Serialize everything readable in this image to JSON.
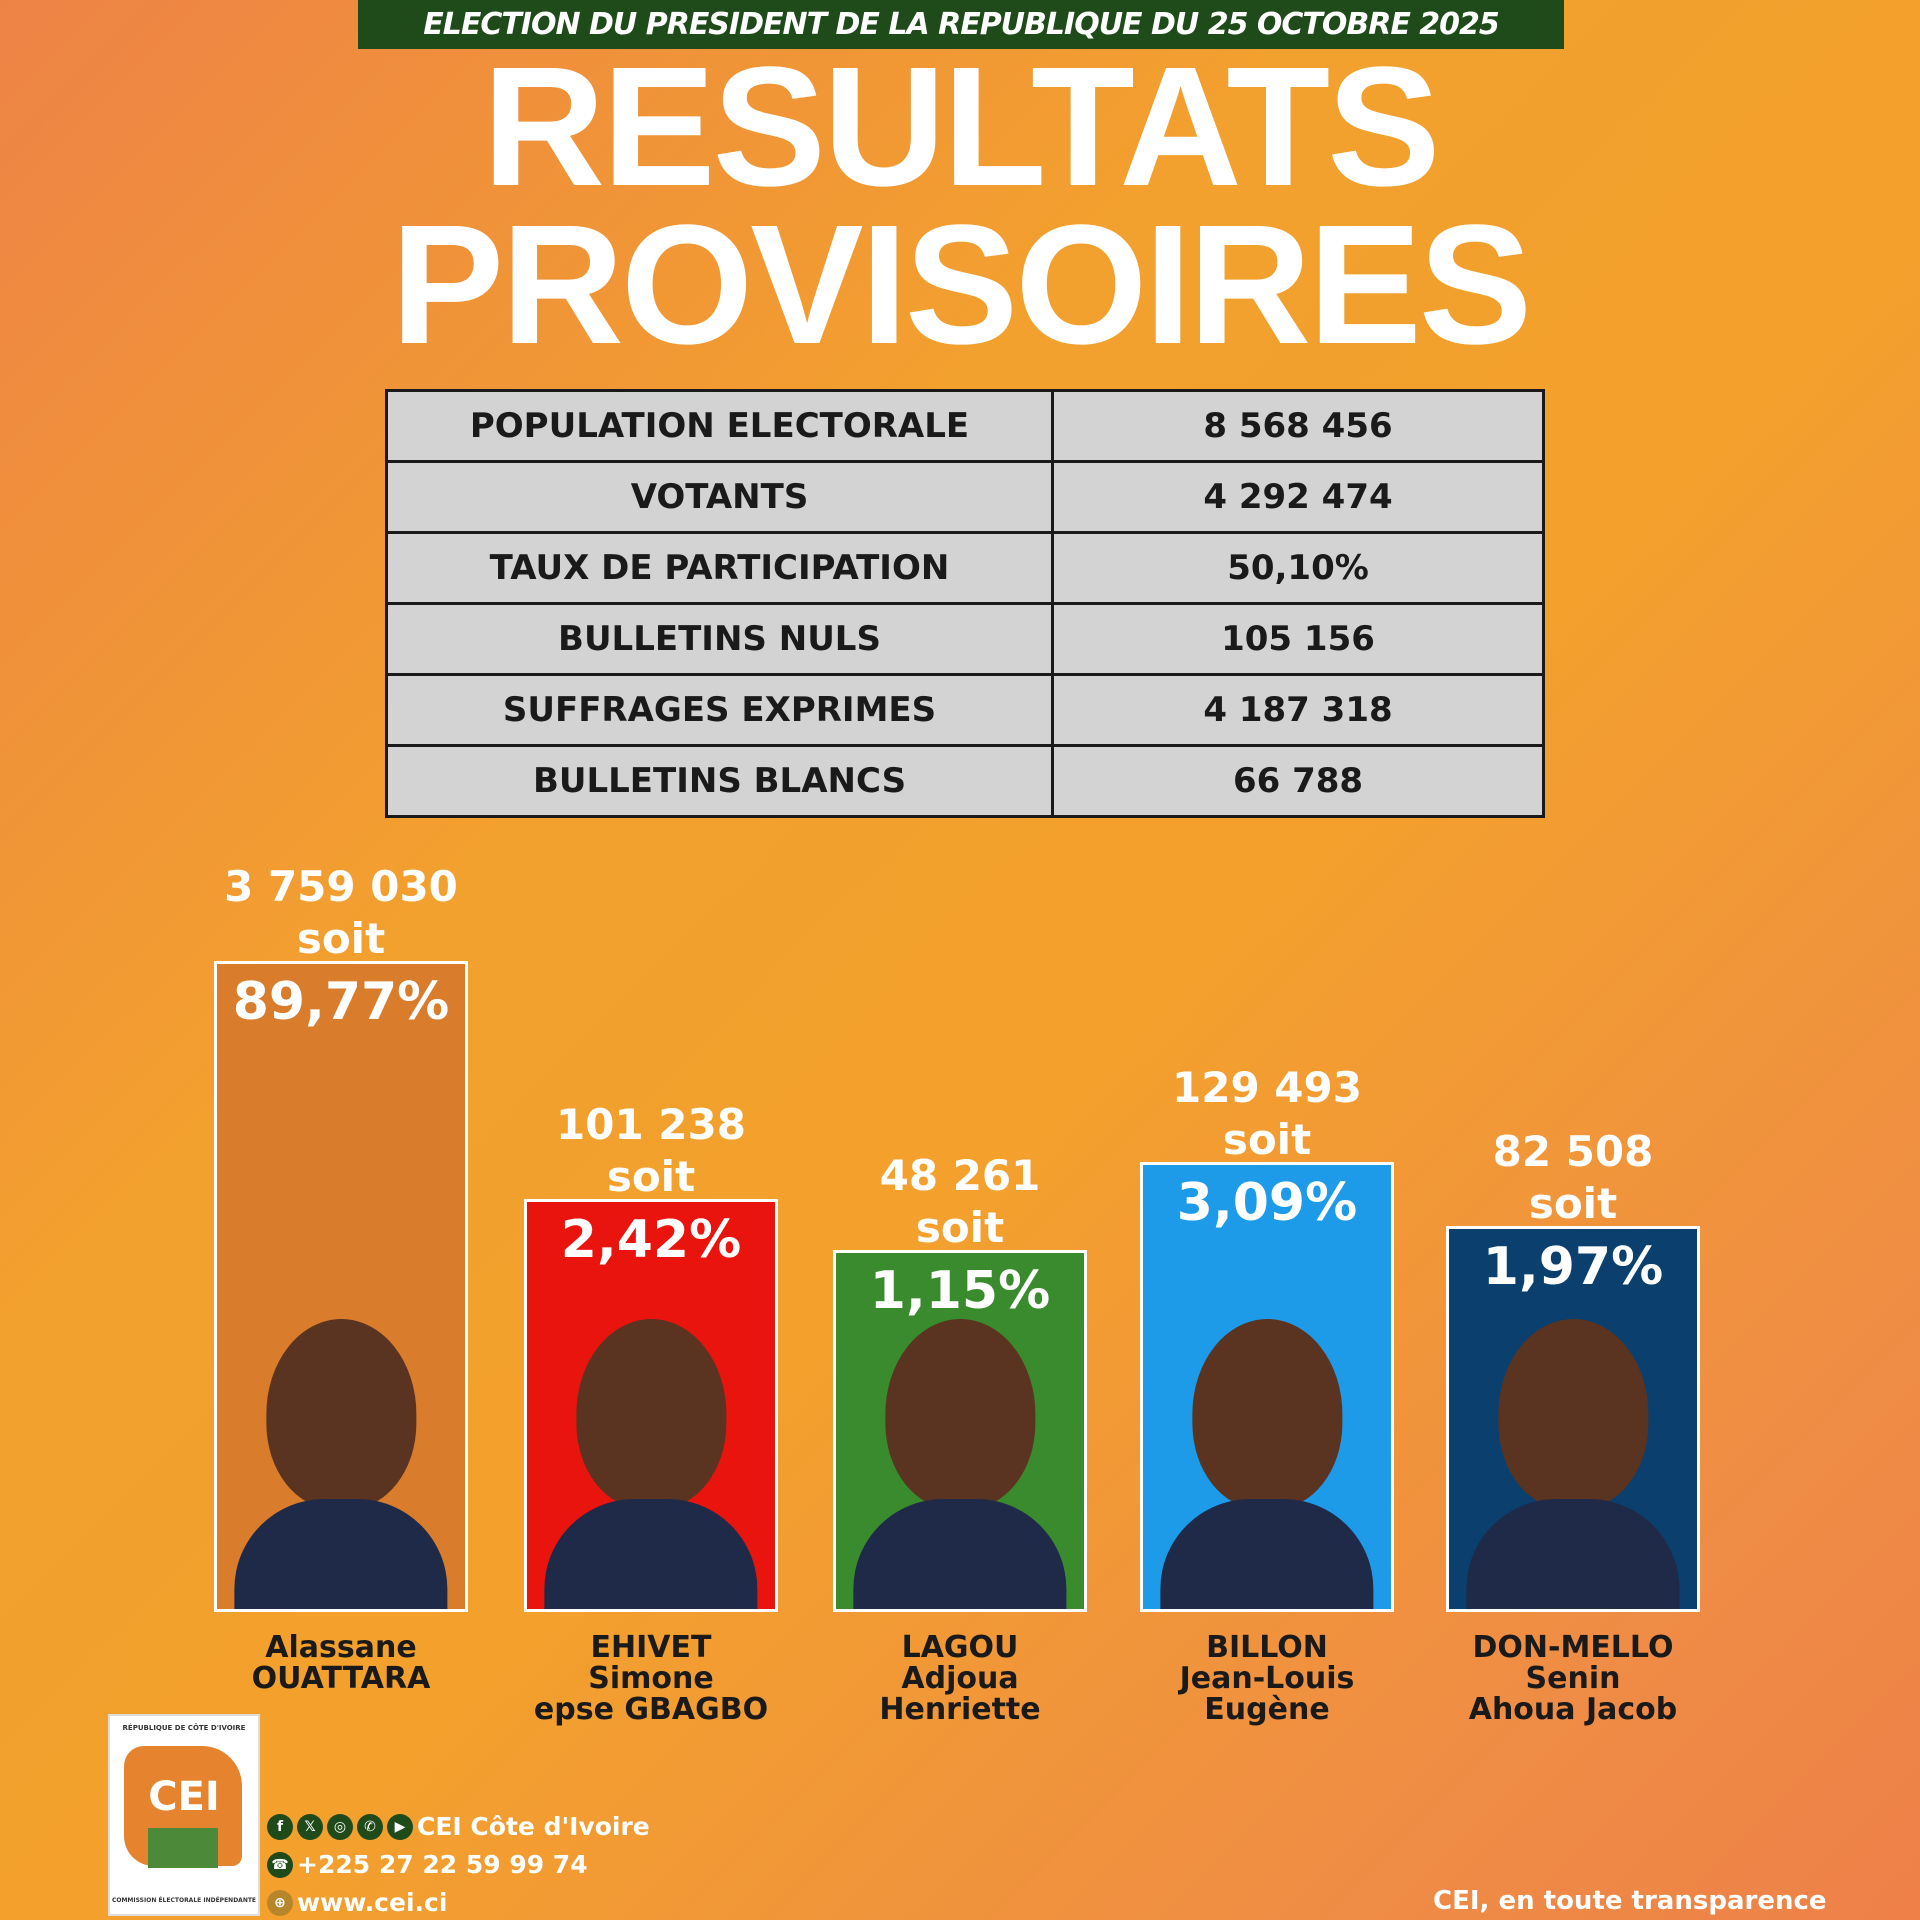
{
  "header": {
    "banner": "ELECTION DU PRESIDENT DE LA REPUBLIQUE DU 25 OCTOBRE 2025",
    "title_line1": "RESULTATS",
    "title_line2": "PROVISOIRES"
  },
  "stats": [
    {
      "label": "POPULATION ELECTORALE",
      "value": "8 568 456"
    },
    {
      "label": "VOTANTS",
      "value": "4 292 474"
    },
    {
      "label": "TAUX DE PARTICIPATION",
      "value": "50,10%"
    },
    {
      "label": "BULLETINS NULS",
      "value": "105 156"
    },
    {
      "label": "SUFFRAGES EXPRIMES",
      "value": "4 187 318"
    },
    {
      "label": "BULLETINS BLANCS",
      "value": "66 788"
    }
  ],
  "soit": "soit",
  "candidates": [
    {
      "votes": "3 759 030",
      "percent": "89,77%",
      "name1": "Alassane",
      "name2": "OUATTARA",
      "name3": "",
      "color": "#d97c2c"
    },
    {
      "votes": "101 238",
      "percent": "2,42%",
      "name1": "EHIVET",
      "name2": "Simone",
      "name3": "epse GBAGBO",
      "color": "#ea140e"
    },
    {
      "votes": "48 261",
      "percent": "1,15%",
      "name1": "LAGOU",
      "name2": "Adjoua",
      "name3": "Henriette",
      "color": "#3a8a2e"
    },
    {
      "votes": "129 493",
      "percent": "3,09%",
      "name1": "BILLON",
      "name2": "Jean-Louis",
      "name3": "Eugène",
      "color": "#1e9be8"
    },
    {
      "votes": "82 508",
      "percent": "1,97%",
      "name1": "DON-MELLO",
      "name2": "Senin",
      "name3": "Ahoua Jacob",
      "color": "#0b3f6d"
    }
  ],
  "footer": {
    "social": "CEI Côte d'Ivoire",
    "phone": "+225 27 22 59 99 74",
    "website": "www.cei.ci",
    "slogan": "CEI, en toute transparence",
    "logo_text": "CEI",
    "logo_top": "RÉPUBLIQUE DE CÔTE D'IVOIRE",
    "logo_bottom": "COMMISSION ÉLECTORALE INDÉPENDANTE"
  }
}
